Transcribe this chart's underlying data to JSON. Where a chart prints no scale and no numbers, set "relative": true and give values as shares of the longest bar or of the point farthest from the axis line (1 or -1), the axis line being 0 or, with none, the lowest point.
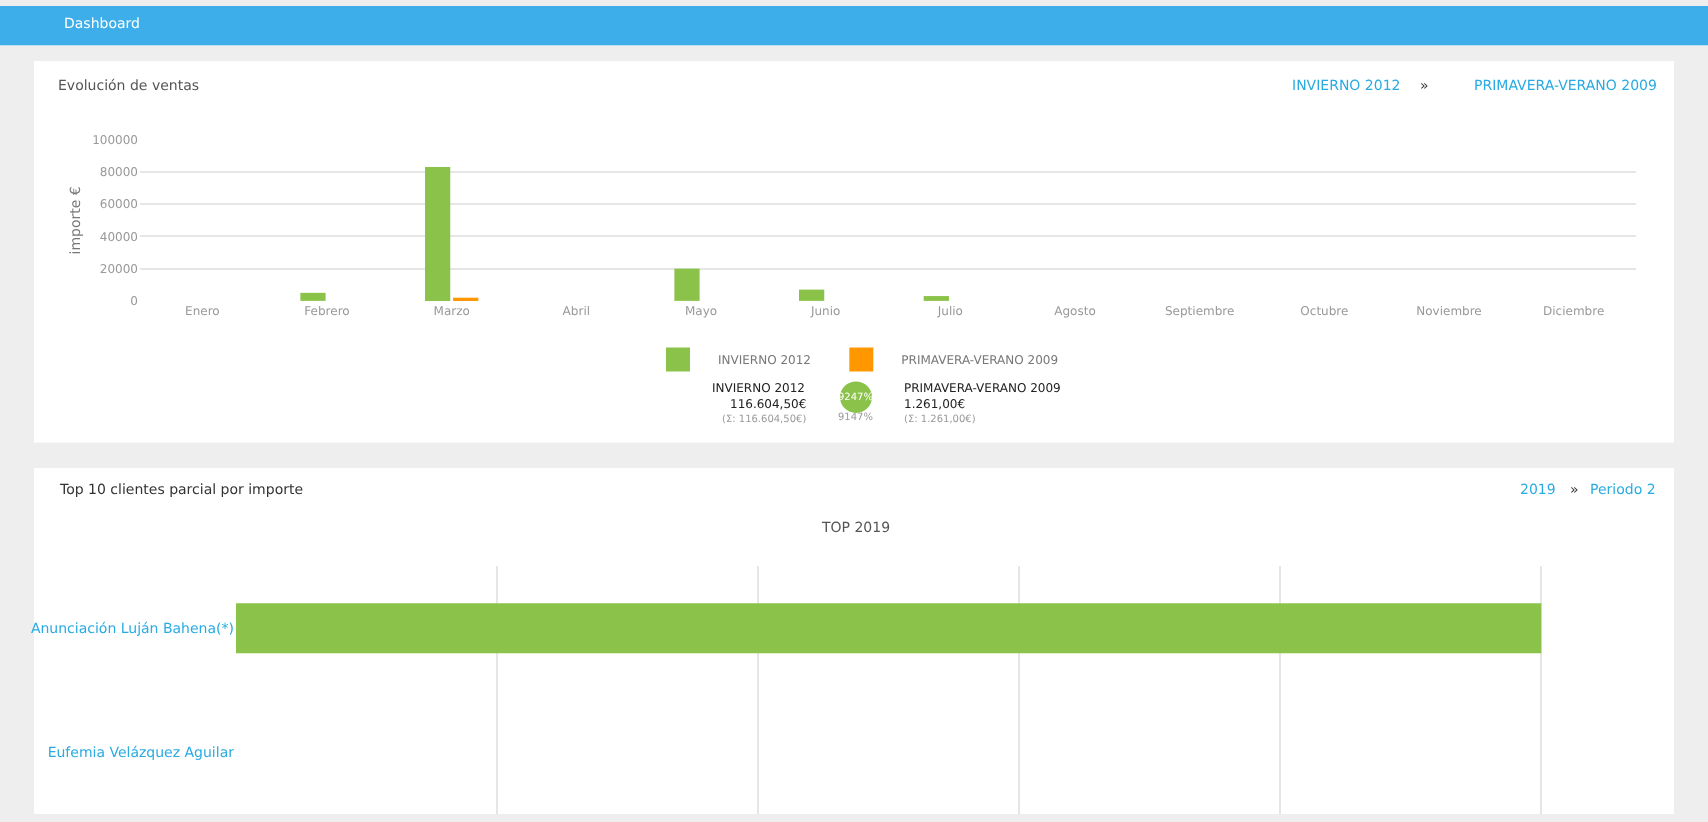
{
  "chart_data": [
    {
      "type": "bar",
      "title": "Evolución de ventas",
      "ylabel": "importe €",
      "categories": [
        "Enero",
        "Febrero",
        "Marzo",
        "Abril",
        "Mayo",
        "Junio",
        "Julio",
        "Agosto",
        "Septiembre",
        "Octubre",
        "Noviembre",
        "Diciembre"
      ],
      "series": [
        {
          "name": "INVIERNO 2012",
          "color": "#8bc34a",
          "values": [
            0,
            5000,
            83000,
            0,
            20000,
            7000,
            3000,
            0,
            0,
            0,
            0,
            0
          ]
        },
        {
          "name": "PRIMAVERA-VERANO 2009",
          "color": "#ff9800",
          "values": [
            0,
            0,
            1000,
            0,
            0,
            0,
            0,
            0,
            0,
            0,
            0,
            0
          ]
        }
      ],
      "ylim": [
        0,
        100000
      ],
      "yticks": [
        0,
        20000,
        40000,
        60000,
        80000,
        100000
      ],
      "grid": "y",
      "legend": "bottom",
      "annotations": [
        "INVIERNO 2012",
        "»",
        "PRIMAVERA-VERANO 2009",
        "INVIERNO 2012",
        "116.604,50€",
        "(Σ: 116.604,50€)",
        "9247%",
        "9147%",
        "PRIMAVERA-VERANO 2009",
        "1.261,00€",
        "(Σ: 1.261,00€)",
        "Dashboard"
      ]
    },
    {
      "type": "bar",
      "orientation": "horizontal",
      "relative": true,
      "title": "Top 10 clientes parcial por importe",
      "subtitle": "TOP 2019",
      "categories": [
        "Anunciación Luján Bahena(*)",
        "Eufemia Velázquez Aguilar"
      ],
      "series": [
        {
          "color": "#8bc34a",
          "values": [
            1,
            0
          ]
        }
      ],
      "grid": "x",
      "annotations": [
        "2019",
        "»",
        "Periodo 2"
      ]
    }
  ]
}
